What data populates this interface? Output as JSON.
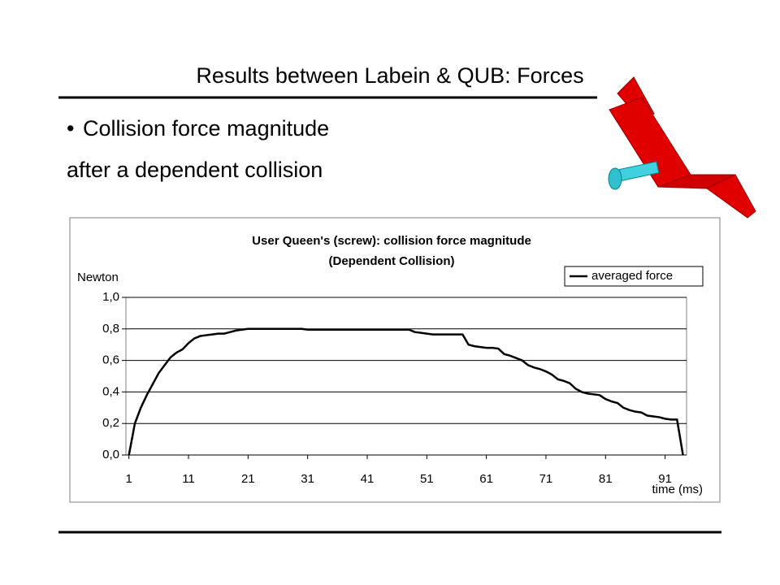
{
  "slide": {
    "title": "Results between Labein & QUB: Forces",
    "bullet": "Collision force magnitude",
    "text": "after a dependent collision"
  },
  "chart_data": {
    "type": "line",
    "title": "User Queen's (screw): collision force magnitude",
    "subtitle": "(Dependent Collision)",
    "y_label": "Newton",
    "x_label": "time (ms)",
    "legend": "top-right",
    "grid": true,
    "x": [
      1,
      2,
      3,
      4,
      5,
      6,
      7,
      8,
      9,
      10,
      11,
      12,
      13,
      14,
      15,
      16,
      17,
      18,
      19,
      20,
      21,
      22,
      23,
      24,
      25,
      26,
      27,
      28,
      29,
      30,
      31,
      32,
      33,
      34,
      35,
      36,
      37,
      38,
      39,
      40,
      41,
      42,
      43,
      44,
      45,
      46,
      47,
      48,
      49,
      50,
      51,
      52,
      53,
      54,
      55,
      56,
      57,
      58,
      59,
      60,
      61,
      62,
      63,
      64,
      65,
      66,
      67,
      68,
      69,
      70,
      71,
      72,
      73,
      74,
      75,
      76,
      77,
      78,
      79,
      80,
      81,
      82,
      83,
      84,
      85,
      86,
      87,
      88,
      89,
      90,
      91,
      92,
      93,
      94
    ],
    "xlim": [
      0.5,
      94.6
    ],
    "xticks": [
      1,
      11,
      21,
      31,
      41,
      51,
      61,
      71,
      81,
      91
    ],
    "ylim": [
      0,
      1
    ],
    "yticks": [
      {
        "value": 0,
        "label": "0,0"
      },
      {
        "value": 0.2,
        "label": "0,2"
      },
      {
        "value": 0.4,
        "label": "0,4"
      },
      {
        "value": 0.6,
        "label": "0,6"
      },
      {
        "value": 0.8,
        "label": "0,8"
      },
      {
        "value": 1,
        "label": "1,0"
      }
    ],
    "series": [
      {
        "name": "averaged force",
        "color": "#000000",
        "values": [
          0,
          0.2,
          0.3,
          0.38,
          0.45,
          0.52,
          0.57,
          0.62,
          0.65,
          0.67,
          0.71,
          0.74,
          0.755,
          0.76,
          0.765,
          0.77,
          0.77,
          0.78,
          0.79,
          0.795,
          0.8,
          0.8,
          0.8,
          0.8,
          0.8,
          0.8,
          0.8,
          0.8,
          0.8,
          0.8,
          0.795,
          0.795,
          0.795,
          0.795,
          0.795,
          0.795,
          0.795,
          0.795,
          0.795,
          0.795,
          0.795,
          0.795,
          0.795,
          0.795,
          0.795,
          0.795,
          0.795,
          0.795,
          0.78,
          0.775,
          0.77,
          0.765,
          0.765,
          0.765,
          0.765,
          0.765,
          0.765,
          0.7,
          0.69,
          0.685,
          0.68,
          0.68,
          0.675,
          0.64,
          0.63,
          0.615,
          0.6,
          0.57,
          0.555,
          0.545,
          0.53,
          0.51,
          0.48,
          0.47,
          0.455,
          0.42,
          0.4,
          0.39,
          0.385,
          0.38,
          0.355,
          0.34,
          0.33,
          0.3,
          0.285,
          0.275,
          0.27,
          0.25,
          0.245,
          0.24,
          0.23,
          0.225,
          0.225,
          0
        ]
      }
    ]
  }
}
